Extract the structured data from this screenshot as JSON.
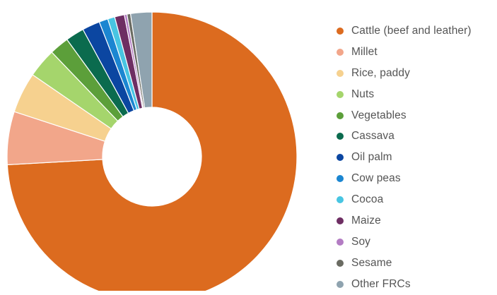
{
  "chart_data": {
    "type": "pie",
    "donut": true,
    "title": "",
    "legend_position": "right",
    "slices": [
      {
        "label": "Cattle (beef and leather)",
        "value": 75.0,
        "color": "#DC6B1F"
      },
      {
        "label": "Millet",
        "value": 6.0,
        "color": "#F2A68A"
      },
      {
        "label": "Rice, paddy",
        "value": 4.6,
        "color": "#F6D18F"
      },
      {
        "label": "Nuts",
        "value": 3.3,
        "color": "#A5D56C"
      },
      {
        "label": "Vegetables",
        "value": 2.2,
        "color": "#5C9F3A"
      },
      {
        "label": "Cassava",
        "value": 2.1,
        "color": "#0B6B4E"
      },
      {
        "label": "Oil palm",
        "value": 2.0,
        "color": "#0B46A1"
      },
      {
        "label": "Cow peas",
        "value": 1.0,
        "color": "#1B86D1"
      },
      {
        "label": "Cocoa",
        "value": 0.8,
        "color": "#48C5E2"
      },
      {
        "label": "Maize",
        "value": 1.1,
        "color": "#6E2E63"
      },
      {
        "label": "Soy",
        "value": 0.3,
        "color": "#B37CC3"
      },
      {
        "label": "Sesame",
        "value": 0.4,
        "color": "#6A6B62"
      },
      {
        "label": "Other FRCs",
        "value": 2.4,
        "color": "#8FA3AF"
      }
    ]
  }
}
